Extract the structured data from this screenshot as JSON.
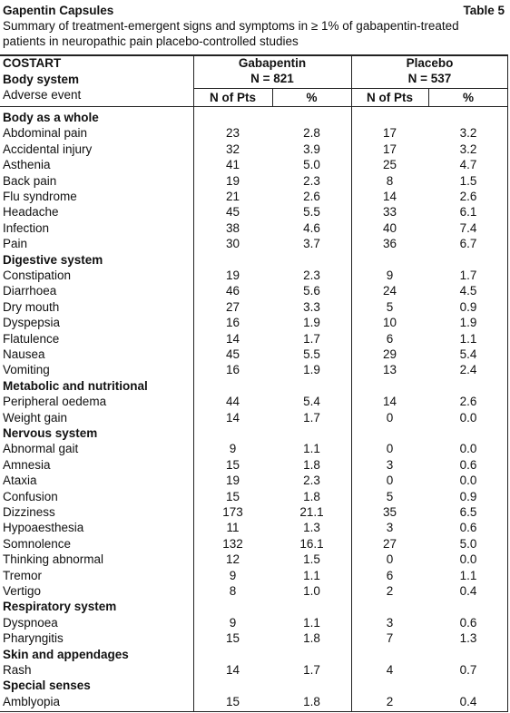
{
  "header": {
    "title": "Gapentin Capsules",
    "table_label": "Table 5",
    "subtitle": [
      "Summary of treatment-emergent signs and symptoms in ≥ 1% of gabapentin-treated",
      "patients in neuropathic pain placebo-controlled studies"
    ]
  },
  "table": {
    "columns": {
      "costart": "COSTART",
      "body_system": "Body system",
      "adverse_event": "Adverse event",
      "groups": [
        {
          "name": "Gabapentin",
          "n": "N = 821"
        },
        {
          "name": "Placebo",
          "n": "N = 537"
        }
      ],
      "subheaders": [
        "N of Pts",
        "%",
        "N of Pts",
        "%"
      ]
    },
    "sections": [
      {
        "name": "Body as a whole",
        "rows": [
          {
            "event": "Abdominal pain",
            "values": [
              "23",
              "2.8",
              "17",
              "3.2"
            ]
          },
          {
            "event": "Accidental injury",
            "values": [
              "32",
              "3.9",
              "17",
              "3.2"
            ]
          },
          {
            "event": "Asthenia",
            "values": [
              "41",
              "5.0",
              "25",
              "4.7"
            ]
          },
          {
            "event": "Back pain",
            "values": [
              "19",
              "2.3",
              "8",
              "1.5"
            ]
          },
          {
            "event": "Flu syndrome",
            "values": [
              "21",
              "2.6",
              "14",
              "2.6"
            ]
          },
          {
            "event": "Headache",
            "values": [
              "45",
              "5.5",
              "33",
              "6.1"
            ]
          },
          {
            "event": "Infection",
            "values": [
              "38",
              "4.6",
              "40",
              "7.4"
            ]
          },
          {
            "event": "Pain",
            "values": [
              "30",
              "3.7",
              "36",
              "6.7"
            ]
          }
        ]
      },
      {
        "name": "Digestive system",
        "rows": [
          {
            "event": "Constipation",
            "values": [
              "19",
              "2.3",
              "9",
              "1.7"
            ]
          },
          {
            "event": "Diarrhoea",
            "values": [
              "46",
              "5.6",
              "24",
              "4.5"
            ]
          },
          {
            "event": "Dry mouth",
            "values": [
              "27",
              "3.3",
              "5",
              "0.9"
            ]
          },
          {
            "event": "Dyspepsia",
            "values": [
              "16",
              "1.9",
              "10",
              "1.9"
            ]
          },
          {
            "event": "Flatulence",
            "values": [
              "14",
              "1.7",
              "6",
              "1.1"
            ]
          },
          {
            "event": "Nausea",
            "values": [
              "45",
              "5.5",
              "29",
              "5.4"
            ]
          },
          {
            "event": "Vomiting",
            "values": [
              "16",
              "1.9",
              "13",
              "2.4"
            ]
          }
        ]
      },
      {
        "name": "Metabolic and nutritional",
        "rows": [
          {
            "event": "Peripheral oedema",
            "values": [
              "44",
              "5.4",
              "14",
              "2.6"
            ]
          },
          {
            "event": "Weight gain",
            "values": [
              "14",
              "1.7",
              "0",
              "0.0"
            ]
          }
        ]
      },
      {
        "name": "Nervous system",
        "rows": [
          {
            "event": "Abnormal gait",
            "values": [
              "9",
              "1.1",
              "0",
              "0.0"
            ]
          },
          {
            "event": "Amnesia",
            "values": [
              "15",
              "1.8",
              "3",
              "0.6"
            ]
          },
          {
            "event": "Ataxia",
            "values": [
              "19",
              "2.3",
              "0",
              "0.0"
            ]
          },
          {
            "event": "Confusion",
            "values": [
              "15",
              "1.8",
              "5",
              "0.9"
            ]
          },
          {
            "event": "Dizziness",
            "values": [
              "173",
              "21.1",
              "35",
              "6.5"
            ]
          },
          {
            "event": "Hypoaesthesia",
            "values": [
              "11",
              "1.3",
              "3",
              "0.6"
            ]
          },
          {
            "event": "Somnolence",
            "values": [
              "132",
              "16.1",
              "27",
              "5.0"
            ]
          },
          {
            "event": "Thinking abnormal",
            "values": [
              "12",
              "1.5",
              "0",
              "0.0"
            ]
          },
          {
            "event": "Tremor",
            "values": [
              "9",
              "1.1",
              "6",
              "1.1"
            ]
          },
          {
            "event": "Vertigo",
            "values": [
              "8",
              "1.0",
              "2",
              "0.4"
            ]
          }
        ]
      },
      {
        "name": "Respiratory system",
        "rows": [
          {
            "event": "Dyspnoea",
            "values": [
              "9",
              "1.1",
              "3",
              "0.6"
            ]
          },
          {
            "event": "Pharyngitis",
            "values": [
              "15",
              "1.8",
              "7",
              "1.3"
            ]
          }
        ]
      },
      {
        "name": "Skin and appendages",
        "rows": [
          {
            "event": "Rash",
            "values": [
              "14",
              "1.7",
              "4",
              "0.7"
            ]
          }
        ]
      },
      {
        "name": "Special senses",
        "rows": [
          {
            "event": "Amblyopia",
            "values": [
              "15",
              "1.8",
              "2",
              "0.4"
            ]
          }
        ]
      }
    ]
  }
}
